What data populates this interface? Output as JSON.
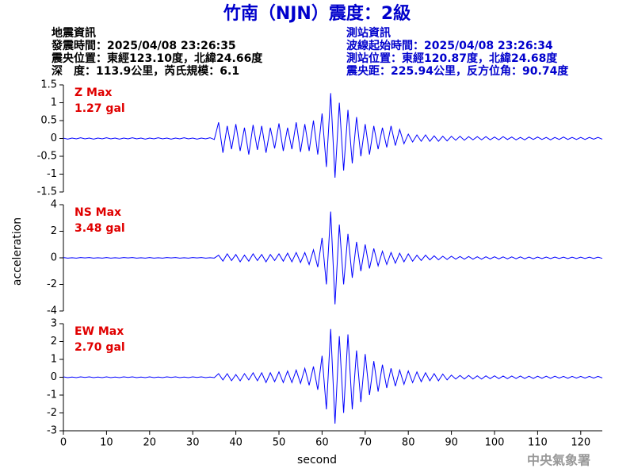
{
  "header": {
    "title": "竹南（NJN）震度：2級",
    "left": [
      "地震資訊",
      "發震時間：2025/04/08 23:26:35",
      "震央位置：東經123.10度，北緯24.66度",
      "深　度：113.9公里，芮氏規模：6.1"
    ],
    "right": [
      "測站資訊",
      "波線起始時間：2025/04/08 23:26:34",
      "測站位置：東經120.87度，北緯24.68度",
      "震央距：225.94公里，反方位角：90.74度"
    ],
    "ylabel": "acceleration",
    "xlabel": "second",
    "footer": "中央氣象署"
  },
  "chart_data": [
    {
      "type": "line",
      "annotations": [
        "Z Max",
        "1.27 gal"
      ],
      "color": "#0000ff",
      "xlim": [
        0,
        125
      ],
      "ylim": [
        -1.5,
        1.5
      ],
      "yticks": [
        -1.5,
        -1,
        -0.5,
        0,
        0.5,
        1,
        1.5
      ],
      "x": [
        0,
        1,
        2,
        3,
        4,
        5,
        6,
        7,
        8,
        9,
        10,
        11,
        12,
        13,
        14,
        15,
        16,
        17,
        18,
        19,
        20,
        21,
        22,
        23,
        24,
        25,
        26,
        27,
        28,
        29,
        30,
        31,
        32,
        33,
        34,
        35,
        36,
        37,
        38,
        39,
        40,
        41,
        42,
        43,
        44,
        45,
        46,
        47,
        48,
        49,
        50,
        51,
        52,
        53,
        54,
        55,
        56,
        57,
        58,
        59,
        60,
        61,
        62,
        63,
        64,
        65,
        66,
        67,
        68,
        69,
        70,
        71,
        72,
        73,
        74,
        75,
        76,
        77,
        78,
        79,
        80,
        81,
        82,
        83,
        84,
        85,
        86,
        87,
        88,
        89,
        90,
        91,
        92,
        93,
        94,
        95,
        96,
        97,
        98,
        99,
        100,
        101,
        102,
        103,
        104,
        105,
        106,
        107,
        108,
        109,
        110,
        111,
        112,
        113,
        114,
        115,
        116,
        117,
        118,
        119,
        120,
        121,
        122,
        123,
        124,
        125
      ],
      "values": [
        0.01,
        -0.02,
        0.01,
        -0.01,
        0.02,
        -0.01,
        0.01,
        -0.02,
        0.01,
        -0.01,
        0.02,
        -0.01,
        0.01,
        -0.02,
        0.01,
        -0.01,
        0.02,
        -0.01,
        0.01,
        -0.02,
        0.01,
        -0.01,
        0.02,
        -0.01,
        0.01,
        -0.02,
        0.01,
        -0.01,
        0.02,
        -0.01,
        0.01,
        -0.02,
        0.01,
        -0.01,
        0.02,
        -0.03,
        0.45,
        -0.4,
        0.35,
        -0.3,
        0.4,
        -0.35,
        0.3,
        -0.45,
        0.38,
        -0.32,
        0.35,
        -0.4,
        0.3,
        -0.28,
        0.42,
        -0.35,
        0.3,
        -0.3,
        0.45,
        -0.38,
        0.4,
        -0.35,
        0.5,
        -0.45,
        0.7,
        -0.8,
        1.27,
        -1.1,
        1.0,
        -0.9,
        0.8,
        -0.7,
        0.6,
        -0.5,
        0.4,
        -0.45,
        0.35,
        -0.3,
        0.3,
        -0.25,
        0.35,
        -0.2,
        0.25,
        -0.15,
        0.12,
        -0.1,
        0.1,
        -0.08,
        0.1,
        -0.08,
        0.07,
        -0.08,
        0.06,
        -0.07,
        0.06,
        -0.05,
        0.06,
        -0.05,
        0.05,
        -0.04,
        0.05,
        -0.04,
        0.05,
        -0.04,
        0.04,
        -0.04,
        0.05,
        -0.03,
        0.04,
        -0.04,
        0.03,
        -0.04,
        0.04,
        -0.03,
        0.04,
        -0.03,
        0.03,
        -0.04,
        0.03,
        -0.03,
        0.04,
        -0.03,
        0.03,
        -0.03,
        0.03,
        -0.03,
        0.03,
        -0.02,
        0.03,
        -0.02
      ]
    },
    {
      "type": "line",
      "annotations": [
        "NS Max",
        "3.48 gal"
      ],
      "color": "#0000ff",
      "xlim": [
        0,
        125
      ],
      "ylim": [
        -4,
        4
      ],
      "yticks": [
        -4,
        -2,
        0,
        2,
        4
      ],
      "x": [
        0,
        1,
        2,
        3,
        4,
        5,
        6,
        7,
        8,
        9,
        10,
        11,
        12,
        13,
        14,
        15,
        16,
        17,
        18,
        19,
        20,
        21,
        22,
        23,
        24,
        25,
        26,
        27,
        28,
        29,
        30,
        31,
        32,
        33,
        34,
        35,
        36,
        37,
        38,
        39,
        40,
        41,
        42,
        43,
        44,
        45,
        46,
        47,
        48,
        49,
        50,
        51,
        52,
        53,
        54,
        55,
        56,
        57,
        58,
        59,
        60,
        61,
        62,
        63,
        64,
        65,
        66,
        67,
        68,
        69,
        70,
        71,
        72,
        73,
        74,
        75,
        76,
        77,
        78,
        79,
        80,
        81,
        82,
        83,
        84,
        85,
        86,
        87,
        88,
        89,
        90,
        91,
        92,
        93,
        94,
        95,
        96,
        97,
        98,
        99,
        100,
        101,
        102,
        103,
        104,
        105,
        106,
        107,
        108,
        109,
        110,
        111,
        112,
        113,
        114,
        115,
        116,
        117,
        118,
        119,
        120,
        121,
        122,
        123,
        124,
        125
      ],
      "values": [
        0.02,
        -0.02,
        0.01,
        -0.02,
        0.02,
        -0.01,
        0.02,
        -0.02,
        0.01,
        -0.02,
        0.02,
        -0.02,
        0.01,
        -0.02,
        0.02,
        -0.01,
        0.02,
        -0.02,
        0.01,
        -0.02,
        0.02,
        -0.02,
        0.01,
        -0.02,
        0.02,
        -0.01,
        0.02,
        -0.02,
        0.01,
        -0.02,
        0.02,
        -0.01,
        0.02,
        -0.02,
        0.01,
        -0.02,
        0.2,
        -0.25,
        0.3,
        -0.2,
        0.25,
        -0.3,
        0.2,
        -0.25,
        0.3,
        -0.2,
        0.25,
        -0.3,
        0.25,
        -0.2,
        0.3,
        -0.25,
        0.35,
        -0.3,
        0.4,
        -0.35,
        0.4,
        -0.5,
        0.6,
        -0.7,
        1.5,
        -2.0,
        3.48,
        -3.5,
        2.5,
        -2.0,
        1.8,
        -1.5,
        1.2,
        -1.0,
        1.0,
        -0.8,
        0.7,
        -0.6,
        0.5,
        -0.5,
        0.4,
        -0.4,
        0.35,
        -0.3,
        0.3,
        -0.25,
        0.2,
        -0.2,
        0.2,
        -0.15,
        0.15,
        -0.15,
        0.12,
        -0.12,
        0.12,
        -0.1,
        0.1,
        -0.1,
        0.1,
        -0.1,
        0.08,
        -0.1,
        0.08,
        -0.08,
        0.08,
        -0.08,
        0.07,
        -0.08,
        0.07,
        -0.07,
        0.07,
        -0.07,
        0.06,
        -0.07,
        0.06,
        -0.06,
        0.06,
        -0.06,
        0.06,
        -0.05,
        0.05,
        -0.06,
        0.05,
        -0.05,
        0.05,
        -0.05,
        0.05,
        -0.05,
        0.05,
        -0.04
      ]
    },
    {
      "type": "line",
      "annotations": [
        "EW Max",
        "2.70 gal"
      ],
      "color": "#0000ff",
      "xlim": [
        0,
        125
      ],
      "ylim": [
        -3,
        3
      ],
      "yticks": [
        -3,
        -2,
        -1,
        0,
        1,
        2,
        3
      ],
      "xticks": [
        0,
        10,
        20,
        30,
        40,
        50,
        60,
        70,
        80,
        90,
        100,
        110,
        120
      ],
      "x": [
        0,
        1,
        2,
        3,
        4,
        5,
        6,
        7,
        8,
        9,
        10,
        11,
        12,
        13,
        14,
        15,
        16,
        17,
        18,
        19,
        20,
        21,
        22,
        23,
        24,
        25,
        26,
        27,
        28,
        29,
        30,
        31,
        32,
        33,
        34,
        35,
        36,
        37,
        38,
        39,
        40,
        41,
        42,
        43,
        44,
        45,
        46,
        47,
        48,
        49,
        50,
        51,
        52,
        53,
        54,
        55,
        56,
        57,
        58,
        59,
        60,
        61,
        62,
        63,
        64,
        65,
        66,
        67,
        68,
        69,
        70,
        71,
        72,
        73,
        74,
        75,
        76,
        77,
        78,
        79,
        80,
        81,
        82,
        83,
        84,
        85,
        86,
        87,
        88,
        89,
        90,
        91,
        92,
        93,
        94,
        95,
        96,
        97,
        98,
        99,
        100,
        101,
        102,
        103,
        104,
        105,
        106,
        107,
        108,
        109,
        110,
        111,
        112,
        113,
        114,
        115,
        116,
        117,
        118,
        119,
        120,
        121,
        122,
        123,
        124,
        125
      ],
      "values": [
        0.02,
        -0.02,
        0.01,
        -0.02,
        0.02,
        -0.01,
        0.02,
        -0.02,
        0.01,
        -0.02,
        0.02,
        -0.02,
        0.01,
        -0.02,
        0.02,
        -0.01,
        0.02,
        -0.02,
        0.01,
        -0.02,
        0.02,
        -0.02,
        0.01,
        -0.02,
        0.02,
        -0.01,
        0.02,
        -0.02,
        0.01,
        -0.02,
        0.02,
        -0.01,
        0.02,
        -0.02,
        0.01,
        -0.02,
        0.2,
        -0.15,
        0.2,
        -0.2,
        0.15,
        -0.2,
        0.2,
        -0.15,
        0.25,
        -0.2,
        0.25,
        -0.3,
        0.25,
        -0.25,
        0.3,
        -0.3,
        0.35,
        -0.3,
        0.4,
        -0.35,
        0.5,
        -0.45,
        0.6,
        -0.7,
        1.2,
        -1.8,
        2.7,
        -2.6,
        2.3,
        -2.0,
        2.4,
        -1.8,
        1.5,
        -1.4,
        1.3,
        -1.0,
        0.9,
        -0.8,
        0.7,
        -0.6,
        0.5,
        -0.5,
        0.4,
        -0.4,
        0.35,
        -0.3,
        0.3,
        -0.25,
        0.25,
        -0.2,
        0.2,
        -0.2,
        0.18,
        -0.15,
        0.12,
        -0.1,
        0.1,
        -0.1,
        0.1,
        -0.1,
        0.08,
        -0.1,
        0.08,
        -0.08,
        0.08,
        -0.08,
        0.07,
        -0.08,
        0.07,
        -0.07,
        0.07,
        -0.07,
        0.06,
        -0.07,
        0.06,
        -0.06,
        0.06,
        -0.06,
        0.06,
        -0.05,
        0.05,
        -0.06,
        0.05,
        -0.05,
        0.05,
        -0.05,
        0.05,
        -0.05,
        0.05,
        -0.04
      ]
    }
  ]
}
